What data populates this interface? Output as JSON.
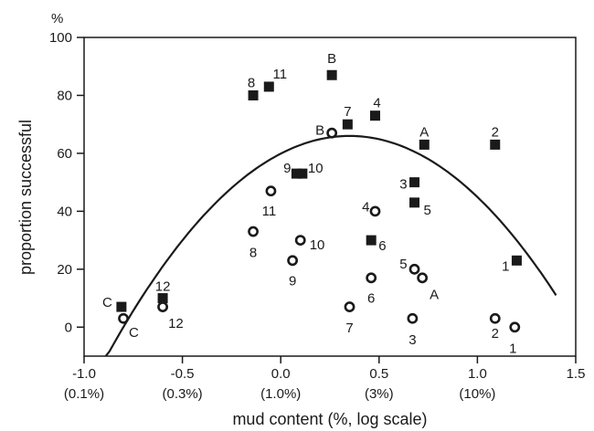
{
  "chart_data": {
    "type": "scatter",
    "xlabel": "mud content (%, log scale)",
    "ylabel": "proportion successful",
    "y_unit": "%",
    "xlim": [
      -1.0,
      1.5
    ],
    "ylim": [
      -10,
      100
    ],
    "x_ticks": [
      {
        "value": -1.0,
        "label": "-1.0",
        "sub": "(0.1%)"
      },
      {
        "value": -0.5,
        "label": "-0.5",
        "sub": "(0.3%)"
      },
      {
        "value": 0.0,
        "label": "0.0",
        "sub": "(1.0%)"
      },
      {
        "value": 0.5,
        "label": "0.5",
        "sub": "(3%)"
      },
      {
        "value": 1.0,
        "label": "1.0",
        "sub": "(10%)"
      },
      {
        "value": 1.5,
        "label": "1.5",
        "sub": ""
      }
    ],
    "y_ticks": [
      0,
      20,
      40,
      60,
      80,
      100
    ],
    "grid": false,
    "legend": "none",
    "series": [
      {
        "marker": "filled-square",
        "color": "#1a1a1a",
        "points": [
          {
            "x": -0.81,
            "y": 7,
            "label": "C"
          },
          {
            "x": -0.6,
            "y": 10,
            "label": "12"
          },
          {
            "x": -0.14,
            "y": 80,
            "label": "8"
          },
          {
            "x": -0.06,
            "y": 83,
            "label": "11"
          },
          {
            "x": 0.08,
            "y": 53,
            "label": "9"
          },
          {
            "x": 0.11,
            "y": 53,
            "label": "10"
          },
          {
            "x": 0.26,
            "y": 87,
            "label": "B"
          },
          {
            "x": 0.34,
            "y": 70,
            "label": "7"
          },
          {
            "x": 0.48,
            "y": 73,
            "label": "4"
          },
          {
            "x": 0.46,
            "y": 30,
            "label": "6"
          },
          {
            "x": 0.68,
            "y": 50,
            "label": "3"
          },
          {
            "x": 0.68,
            "y": 43,
            "label": "5"
          },
          {
            "x": 0.73,
            "y": 63,
            "label": "A"
          },
          {
            "x": 1.09,
            "y": 63,
            "label": "2"
          },
          {
            "x": 1.2,
            "y": 23,
            "label": "1"
          }
        ]
      },
      {
        "marker": "open-circle",
        "color": "#1a1a1a",
        "points": [
          {
            "x": -0.8,
            "y": 3,
            "label": "C"
          },
          {
            "x": -0.6,
            "y": 7,
            "label": "12"
          },
          {
            "x": -0.14,
            "y": 33,
            "label": "8"
          },
          {
            "x": -0.05,
            "y": 47,
            "label": "11"
          },
          {
            "x": 0.06,
            "y": 23,
            "label": "9"
          },
          {
            "x": 0.1,
            "y": 30,
            "label": "10"
          },
          {
            "x": 0.26,
            "y": 67,
            "label": "B"
          },
          {
            "x": 0.48,
            "y": 40,
            "label": "4"
          },
          {
            "x": 0.46,
            "y": 17,
            "label": "6"
          },
          {
            "x": 0.35,
            "y": 7,
            "label": "7"
          },
          {
            "x": 0.67,
            "y": 3,
            "label": "3"
          },
          {
            "x": 0.68,
            "y": 20,
            "label": "5"
          },
          {
            "x": 0.72,
            "y": 17,
            "label": "A"
          },
          {
            "x": 1.09,
            "y": 3,
            "label": "2"
          },
          {
            "x": 1.19,
            "y": 0,
            "label": "1"
          }
        ]
      }
    ],
    "fitted_curve": {
      "type": "quadratic",
      "vertex_x": 0.35,
      "vertex_y": 66,
      "points": [
        {
          "x": -0.89,
          "y": -10
        },
        {
          "x": -0.5,
          "y": 20
        },
        {
          "x": 0.0,
          "y": 57
        },
        {
          "x": 0.35,
          "y": 66
        },
        {
          "x": 0.7,
          "y": 60
        },
        {
          "x": 1.0,
          "y": 44
        },
        {
          "x": 1.4,
          "y": 11
        }
      ]
    }
  }
}
